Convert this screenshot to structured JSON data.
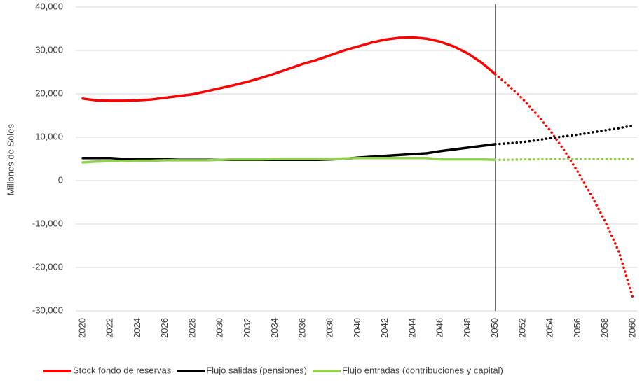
{
  "chart_data": {
    "type": "line",
    "y_label": "Millones de Soles",
    "x": [
      2020,
      2021,
      2022,
      2023,
      2024,
      2025,
      2026,
      2027,
      2028,
      2029,
      2030,
      2031,
      2032,
      2033,
      2034,
      2035,
      2036,
      2037,
      2038,
      2039,
      2040,
      2041,
      2042,
      2043,
      2044,
      2045,
      2046,
      2047,
      2048,
      2049,
      2050,
      2051,
      2052,
      2053,
      2054,
      2055,
      2056,
      2057,
      2058,
      2059,
      2060
    ],
    "series": [
      {
        "name": "Stock fondo de reservas",
        "color": "#ff0000",
        "values": [
          18900,
          18500,
          18400,
          18400,
          18500,
          18700,
          19100,
          19500,
          19900,
          20600,
          21300,
          22000,
          22800,
          23700,
          24700,
          25800,
          26900,
          27800,
          28900,
          30000,
          30900,
          31800,
          32500,
          32900,
          33000,
          32700,
          32000,
          30900,
          29300,
          27200,
          24500,
          21800,
          18800,
          15300,
          11500,
          7000,
          2000,
          -3500,
          -9500,
          -16500,
          -27000
        ]
      },
      {
        "name": "Flujo salidas (pensiones)",
        "color": "#000000",
        "values": [
          5200,
          5200,
          5200,
          5000,
          5000,
          5000,
          4900,
          4800,
          4800,
          4800,
          4800,
          4800,
          4800,
          4800,
          4800,
          4800,
          4800,
          4800,
          4900,
          5000,
          5300,
          5500,
          5700,
          5900,
          6100,
          6300,
          6800,
          7200,
          7600,
          8000,
          8400,
          8600,
          8900,
          9300,
          9800,
          10200,
          10600,
          11100,
          11600,
          12100,
          12700
        ]
      },
      {
        "name": "Flujo entradas (contribuciones y capital)",
        "color": "#92d050",
        "values": [
          4200,
          4400,
          4500,
          4500,
          4600,
          4600,
          4700,
          4700,
          4700,
          4700,
          4800,
          4900,
          4900,
          4900,
          5000,
          5000,
          5000,
          5000,
          5000,
          5100,
          5200,
          5200,
          5200,
          5200,
          5200,
          5200,
          4900,
          4900,
          4900,
          4900,
          4800,
          4800,
          4900,
          4900,
          5000,
          5000,
          5000,
          5000,
          5000,
          5000,
          5000
        ]
      }
    ],
    "projection_start": 2050,
    "xlim": [
      2020,
      2060
    ],
    "xticks": [
      2020,
      2022,
      2024,
      2026,
      2028,
      2030,
      2032,
      2034,
      2036,
      2038,
      2040,
      2042,
      2044,
      2046,
      2048,
      2050,
      2052,
      2054,
      2056,
      2058,
      2060
    ],
    "ylim": [
      -30000,
      40000
    ],
    "yticks": [
      {
        "value": -30000,
        "label": "-30,000"
      },
      {
        "value": -20000,
        "label": "-20,000"
      },
      {
        "value": -10000,
        "label": "-10,000"
      },
      0,
      {
        "value": 10000,
        "label": "10,000"
      },
      {
        "value": 20000,
        "label": "20,000"
      },
      {
        "value": 30000,
        "label": "30,000"
      },
      {
        "value": 40000,
        "label": "40,000"
      }
    ],
    "grid": true,
    "legend": "bottom"
  }
}
